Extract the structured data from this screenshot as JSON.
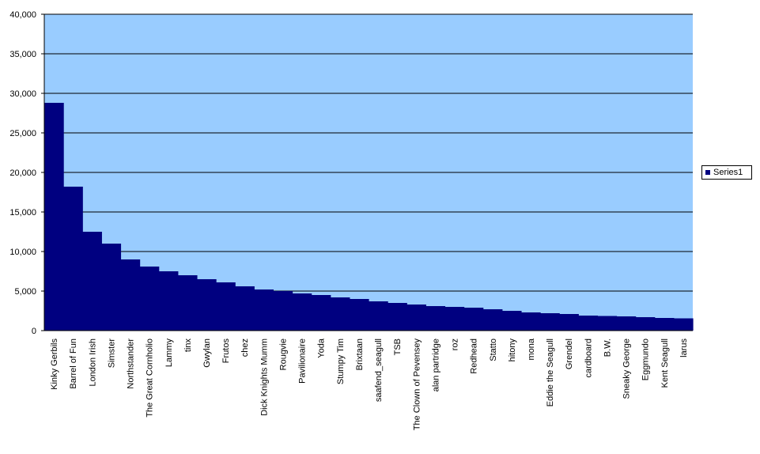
{
  "chart_data": {
    "type": "bar",
    "title": "",
    "xlabel": "",
    "ylabel": "",
    "ylim": [
      0,
      40000
    ],
    "yticks": [
      "0",
      "5,000",
      "10,000",
      "15,000",
      "20,000",
      "25,000",
      "30,000",
      "35,000",
      "40,000"
    ],
    "grid": "horizontal",
    "legend": "right",
    "colors": {
      "plot_area": "#99CCFF",
      "bars": "#000080",
      "grid": "#000000"
    },
    "categories": [
      "Kinky Gerbils",
      "Barrel of Fun",
      "London Irish",
      "Simster",
      "Northstander",
      "The Great Cornholio",
      "Lammy",
      "tinx",
      "Gwylan",
      "Frutos",
      "chez",
      "Dick Knights Mumm",
      "Rougvie",
      "Pavilionaire",
      "Yoda",
      "Stumpy Tim",
      "Brixtaan",
      "saafend_seagull",
      "TSB",
      "The Clown of Pevensey",
      "alan partridge",
      "roz",
      "Redhead",
      "Statto",
      "hitony",
      "mona",
      "Eddie the Seagull",
      "Grendel",
      "cardboard",
      "B.W.",
      "Sneaky George",
      "Eggmundo",
      "Kent Seagull",
      "larus"
    ],
    "series": [
      {
        "name": "Series1",
        "values": [
          28800,
          18200,
          12500,
          11000,
          9000,
          8100,
          7500,
          7000,
          6500,
          6100,
          5600,
          5200,
          5000,
          4700,
          4500,
          4200,
          4000,
          3700,
          3500,
          3300,
          3100,
          3000,
          2900,
          2700,
          2500,
          2300,
          2200,
          2100,
          1900,
          1850,
          1800,
          1700,
          1600,
          1550
        ]
      }
    ]
  }
}
